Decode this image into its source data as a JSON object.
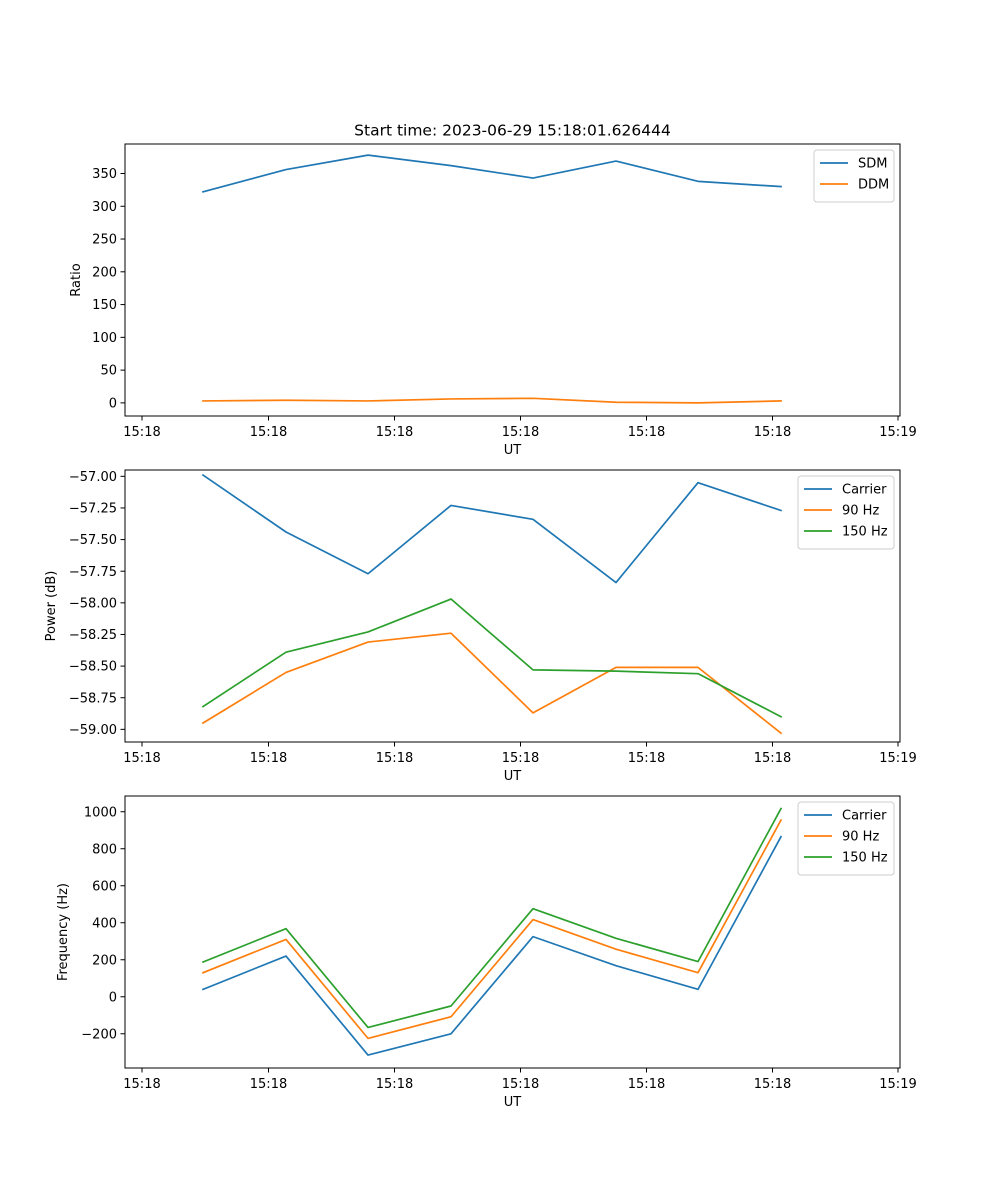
{
  "figure": {
    "title": "Start time: 2023-06-29 15:18:01.626444"
  },
  "chart_data": [
    {
      "type": "line",
      "xlabel": "UT",
      "ylabel": "Ratio",
      "xticklabels": [
        "15:18",
        "15:18",
        "15:18",
        "15:18",
        "15:18",
        "15:18",
        "15:19"
      ],
      "ylim": [
        -20,
        395
      ],
      "yticks": [
        0,
        50,
        100,
        150,
        200,
        250,
        300,
        350
      ],
      "yticklabels": [
        "0",
        "50",
        "100",
        "150",
        "200",
        "250",
        "300",
        "350"
      ],
      "legend_position": "top-right",
      "series": [
        {
          "name": "SDM",
          "color": "#1f77b4",
          "values": [
            322,
            356,
            378,
            362,
            343,
            369,
            338,
            330
          ]
        },
        {
          "name": "DDM",
          "color": "#ff7f0e",
          "values": [
            3,
            4,
            3,
            6,
            7,
            1,
            0,
            3
          ]
        }
      ]
    },
    {
      "type": "line",
      "xlabel": "UT",
      "ylabel": "Power (dB)",
      "xticklabels": [
        "15:18",
        "15:18",
        "15:18",
        "15:18",
        "15:18",
        "15:18",
        "15:19"
      ],
      "ylim": [
        -59.1,
        -56.95
      ],
      "yticks": [
        -59.0,
        -58.75,
        -58.5,
        -58.25,
        -58.0,
        -57.75,
        -57.5,
        -57.25,
        -57.0
      ],
      "yticklabels": [
        "−59.00",
        "−58.75",
        "−58.50",
        "−58.25",
        "−58.00",
        "−57.75",
        "−57.50",
        "−57.25",
        "−57.00"
      ],
      "legend_position": "top-right",
      "series": [
        {
          "name": "Carrier",
          "color": "#1f77b4",
          "values": [
            -56.99,
            -57.44,
            -57.77,
            -57.23,
            -57.34,
            -57.84,
            -57.05,
            -57.27
          ]
        },
        {
          "name": "90 Hz",
          "color": "#ff7f0e",
          "values": [
            -58.95,
            -58.55,
            -58.31,
            -58.24,
            -58.87,
            -58.51,
            -58.51,
            -59.03
          ]
        },
        {
          "name": "150 Hz",
          "color": "#2ca02c",
          "values": [
            -58.82,
            -58.39,
            -58.23,
            -57.97,
            -58.53,
            -58.54,
            -58.56,
            -58.9
          ]
        }
      ]
    },
    {
      "type": "line",
      "xlabel": "UT",
      "ylabel": "Frequency (Hz)",
      "xticklabels": [
        "15:18",
        "15:18",
        "15:18",
        "15:18",
        "15:18",
        "15:18",
        "15:19"
      ],
      "ylim": [
        -385,
        1085
      ],
      "yticks": [
        -200,
        0,
        200,
        400,
        600,
        800,
        1000
      ],
      "yticklabels": [
        "−200",
        "0",
        "200",
        "400",
        "600",
        "800",
        "1000"
      ],
      "legend_position": "top-right",
      "series": [
        {
          "name": "Carrier",
          "color": "#1f77b4",
          "values": [
            40,
            220,
            -315,
            -200,
            325,
            168,
            40,
            865
          ]
        },
        {
          "name": "90 Hz",
          "color": "#ff7f0e",
          "values": [
            130,
            310,
            -225,
            -108,
            417,
            257,
            130,
            955
          ]
        },
        {
          "name": "150 Hz",
          "color": "#2ca02c",
          "values": [
            188,
            368,
            -166,
            -50,
            476,
            316,
            190,
            1017
          ]
        }
      ]
    }
  ]
}
